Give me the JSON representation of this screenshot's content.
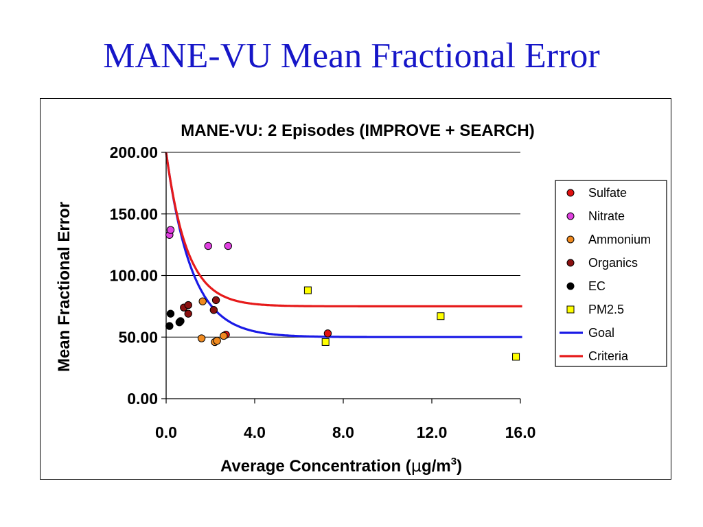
{
  "slide": {
    "title": "MANE-VU Mean Fractional Error"
  },
  "chart_data": {
    "type": "scatter",
    "title": "MANE-VU: 2 Episodes (IMPROVE + SEARCH)",
    "xlabel_prefix": "Average Concentration (",
    "xlabel_mu": "μ",
    "xlabel_unit": "g/m",
    "xlabel_sup": "3",
    "xlabel_suffix": ")",
    "ylabel": "Mean Fractional Error",
    "xlim": [
      0,
      16
    ],
    "ylim": [
      0,
      200
    ],
    "x_ticks": [
      "0.0",
      "4.0",
      "8.0",
      "12.0",
      "16.0"
    ],
    "x_tick_values": [
      0,
      4,
      8,
      12,
      16
    ],
    "y_ticks": [
      "0.00",
      "50.00",
      "100.00",
      "150.00",
      "200.00"
    ],
    "y_tick_values": [
      0,
      50,
      100,
      150,
      200
    ],
    "grid": "horizontal",
    "legend_position": "right",
    "series": [
      {
        "name": "Sulfate",
        "marker": "circle",
        "color": "#e01010",
        "points": [
          [
            2.7,
            52
          ],
          [
            7.3,
            53
          ]
        ]
      },
      {
        "name": "Nitrate",
        "marker": "circle",
        "color": "#e040e0",
        "points": [
          [
            0.15,
            133
          ],
          [
            0.2,
            137
          ],
          [
            1.9,
            124
          ],
          [
            2.8,
            124
          ]
        ]
      },
      {
        "name": "Ammonium",
        "marker": "circle",
        "color": "#f08a20",
        "points": [
          [
            1.6,
            49
          ],
          [
            1.65,
            79
          ],
          [
            2.2,
            46
          ],
          [
            2.3,
            47
          ],
          [
            2.6,
            51
          ]
        ]
      },
      {
        "name": "Organics",
        "marker": "circle",
        "color": "#8a1010",
        "points": [
          [
            0.8,
            74
          ],
          [
            1.0,
            76
          ],
          [
            1.0,
            69
          ],
          [
            2.15,
            72
          ],
          [
            2.25,
            80
          ]
        ]
      },
      {
        "name": "EC",
        "marker": "circle",
        "color": "#000000",
        "points": [
          [
            0.15,
            59
          ],
          [
            0.2,
            69
          ],
          [
            0.6,
            62
          ],
          [
            0.65,
            63
          ]
        ]
      },
      {
        "name": "PM2.5",
        "marker": "square",
        "color": "#ffff00",
        "points": [
          [
            6.4,
            88
          ],
          [
            7.2,
            46
          ],
          [
            12.4,
            67
          ],
          [
            15.8,
            34
          ]
        ]
      },
      {
        "name": "Goal",
        "marker": "line",
        "color": "#1a1ae6",
        "asymptote": 50,
        "peak": 200,
        "decay": 1.15
      },
      {
        "name": "Criteria",
        "marker": "line",
        "color": "#e61a1a",
        "asymptote": 75,
        "peak": 200,
        "decay": 0.95
      }
    ]
  }
}
